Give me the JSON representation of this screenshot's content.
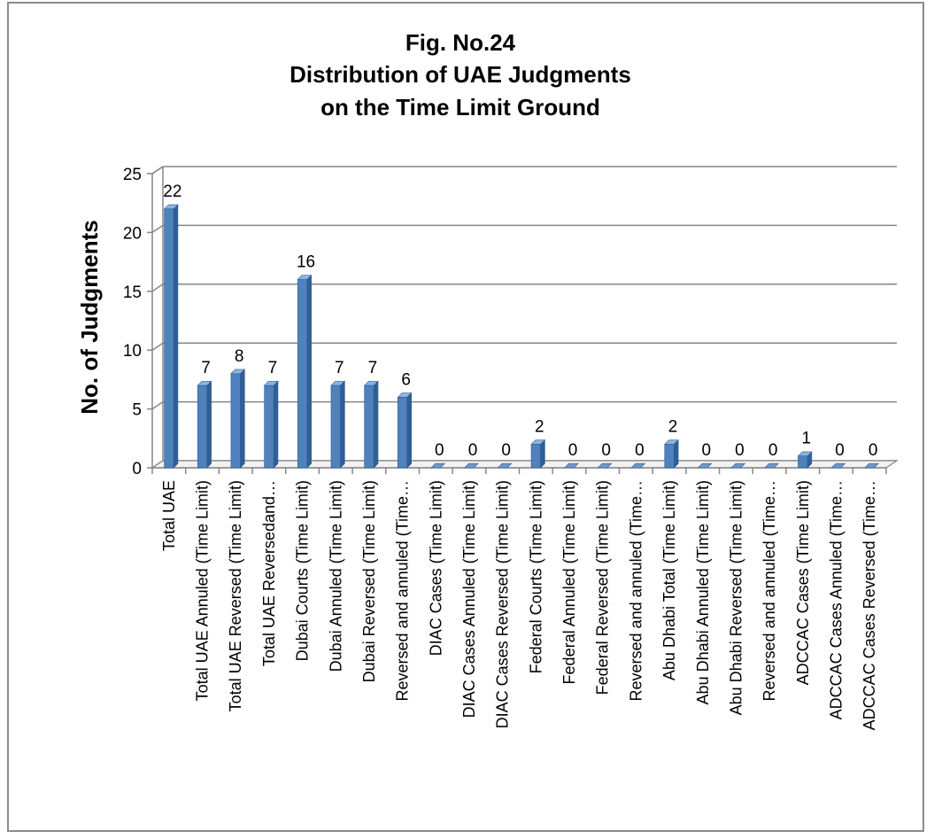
{
  "chart_data": {
    "type": "bar",
    "style": "3d-column",
    "title_lines": [
      "Fig. No.24",
      "Distribution of UAE Judgments",
      "on the Time Limit Ground"
    ],
    "xlabel": "",
    "ylabel": "No. of Judgments",
    "ylim": [
      0,
      25
    ],
    "yticks": [
      "0",
      "5",
      "10",
      "15",
      "20",
      "25"
    ],
    "grid": true,
    "legend": "none",
    "bar_color": "#4f81bd",
    "categories": [
      "Total UAE",
      "Total UAE Annuled (Time Limit)",
      "Total UAE Reversed (Time Limit)",
      "Total UAE Reversedand…",
      "Dubai Courts (Time Limit)",
      "Dubai Annuled (Time Limit)",
      "Dubai Reversed (Time Limit)",
      "Reversed and annuled (Time…",
      "DIAC Cases (Time Limit)",
      "DIAC Cases Annuled (Time Limit)",
      "DIAC Cases Reversed (Time Limit)",
      "Federal Courts (Time Limit)",
      "Federal Annuled (Time Limit)",
      "Federal Reversed (Time Limit)",
      "Reversed and annuled (Time…",
      "Abu Dhabi Total (Time Limit)",
      "Abu Dhabi Annuled (Time Limit)",
      "Abu Dhabi Reversed (Time Limit)",
      "Reversed and annuled (Time…",
      "ADCCAC Cases (Time Limit)",
      "ADCCAC Cases Annuled (Time…",
      "ADCCAC Cases Reversed (Time…"
    ],
    "values": [
      22,
      7,
      8,
      7,
      16,
      7,
      7,
      6,
      0,
      0,
      0,
      2,
      0,
      0,
      0,
      2,
      0,
      0,
      0,
      1,
      0,
      0
    ],
    "data_labels": [
      "22",
      "7",
      "8",
      "7",
      "16",
      "7",
      "7",
      "6",
      "0",
      "0",
      "0",
      "2",
      "0",
      "0",
      "0",
      "2",
      "0",
      "0",
      "0",
      "1",
      "0",
      "0"
    ]
  }
}
